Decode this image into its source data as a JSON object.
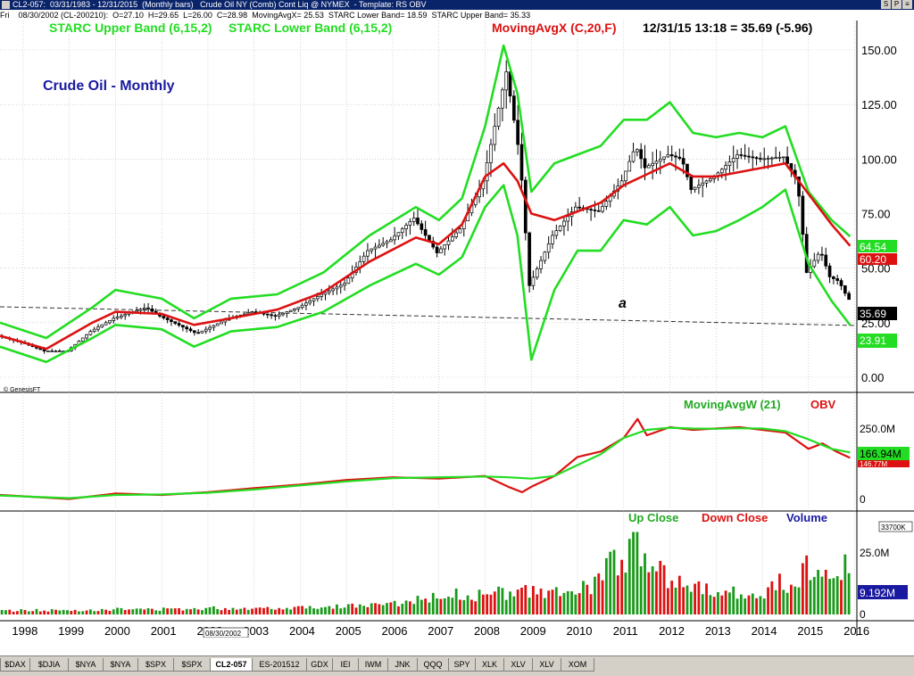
{
  "window": {
    "title": "CL2-057:  03/31/1983 - 12/31/2015  (Monthly bars)   Crude Oil NY (Comb) Cont Liq @ NYMEX  - Template: RS OBV",
    "buttons": [
      "S",
      "P",
      "≡"
    ]
  },
  "infobar": "Fri    08/30/2002 (CL-200210):  O=27.10  H=29.65  L=26.00  C=28.98  MovingAvgX= 25.53  STARC Lower Band= 18.59  STARC Upper Band= 35.33",
  "colors": {
    "green": "#22dd22",
    "red": "#dd1111",
    "navy": "#1a1aa0",
    "bg": "#ffffff",
    "greenBox": "#22dd22",
    "redBox": "#dd1111"
  },
  "main_panel": {
    "legend_upper": "STARC Upper Band (6,15,2)",
    "legend_lower": "STARC Lower Band (6,15,2)",
    "legend_ma": "MovingAvgX (C,20,F)",
    "legend_value": "12/31/15 13:18 = 35.69 (-5.96)",
    "title": "Crude Oil - Monthly",
    "annotation": "a",
    "copyright": "© GenesisFT",
    "value_boxes": {
      "upper": "64.54",
      "ma": "60.20",
      "last": "35.69",
      "lower": "23.91"
    }
  },
  "obv_panel": {
    "legend_ma": "MovingAvgW (21)",
    "legend_obv": "OBV",
    "value_boxes": {
      "ma": "166.94M",
      "obv": "146.77M"
    }
  },
  "volume_panel": {
    "legend_up": "Up Close",
    "legend_down": "Down Close",
    "legend_vol": "Volume",
    "value_box": "9.192M",
    "top_label": "33700K"
  },
  "cursor_date": "08/30/2002",
  "tabs": [
    "$DAX",
    "$DJIA",
    "$NYA",
    "$NYA",
    "$SPX",
    "$SPX",
    "CL2-057",
    "ES-201512",
    "GDX",
    "IEI",
    "IWM",
    "JNK",
    "QQQ",
    "SPY",
    "XLK",
    "XLV",
    "XLV",
    "XOM"
  ],
  "active_tab": "CL2-057",
  "chart_data": [
    {
      "type": "line",
      "title": "Crude Oil - Monthly",
      "x_ticks": [
        "1998",
        "1999",
        "2000",
        "2001",
        "2002",
        "2003",
        "2004",
        "2005",
        "2006",
        "2007",
        "2008",
        "2009",
        "2010",
        "2011",
        "2012",
        "2013",
        "2014",
        "2015",
        "2016"
      ],
      "y_ticks": [
        0,
        25,
        50,
        75,
        100,
        125,
        150
      ],
      "ylim": [
        -2,
        157
      ],
      "grid": true,
      "series": [
        {
          "name": "STARC Upper Band (6,15,2)",
          "x": [
            1997.5,
            1998.5,
            1999.5,
            2000.0,
            2001.0,
            2001.7,
            2002.5,
            2003.5,
            2004.5,
            2005.5,
            2006.5,
            2007.0,
            2007.5,
            2008.0,
            2008.4,
            2008.7,
            2009.0,
            2009.5,
            2010.0,
            2010.5,
            2011.0,
            2011.5,
            2012.0,
            2012.5,
            2013.0,
            2013.5,
            2014.0,
            2014.5,
            2015.0,
            2015.5,
            2015.9
          ],
          "y": [
            25,
            18,
            32,
            40,
            36,
            27,
            36,
            38,
            48,
            65,
            78,
            72,
            82,
            115,
            152,
            130,
            85,
            98,
            102,
            106,
            118,
            118,
            126,
            112,
            110,
            112,
            110,
            115,
            85,
            72,
            64.54
          ]
        },
        {
          "name": "STARC Lower Band (6,15,2)",
          "x": [
            1997.5,
            1998.5,
            1999.5,
            2000.0,
            2001.0,
            2001.7,
            2002.5,
            2003.5,
            2004.5,
            2005.5,
            2006.5,
            2007.0,
            2007.5,
            2008.0,
            2008.4,
            2008.7,
            2009.0,
            2009.5,
            2010.0,
            2010.5,
            2011.0,
            2011.5,
            2012.0,
            2012.5,
            2013.0,
            2013.5,
            2014.0,
            2014.5,
            2015.0,
            2015.5,
            2015.9
          ],
          "y": [
            14,
            7,
            18,
            24,
            22,
            14,
            21,
            23,
            30,
            42,
            52,
            47,
            55,
            78,
            88,
            65,
            8,
            40,
            58,
            58,
            72,
            70,
            78,
            65,
            67,
            72,
            78,
            86,
            52,
            35,
            23.91
          ]
        },
        {
          "name": "MovingAvgX (C,20,F)",
          "x": [
            1997.5,
            1998.5,
            1999.5,
            2000.0,
            2001.0,
            2001.7,
            2002.5,
            2003.5,
            2004.5,
            2005.5,
            2006.5,
            2007.0,
            2007.5,
            2008.0,
            2008.4,
            2008.7,
            2009.0,
            2009.5,
            2010.0,
            2010.5,
            2011.0,
            2011.5,
            2012.0,
            2012.5,
            2013.0,
            2013.5,
            2014.0,
            2014.5,
            2015.0,
            2015.5,
            2015.9
          ],
          "y": [
            19,
            13,
            25,
            30,
            29,
            24,
            27,
            31,
            39,
            53,
            64,
            61,
            70,
            92,
            98,
            90,
            75,
            72,
            76,
            80,
            88,
            93,
            98,
            92,
            92,
            94,
            96,
            98,
            84,
            70,
            60.2
          ]
        },
        {
          "name": "Price",
          "x": [
            1997.5,
            1998.0,
            1998.5,
            1999.0,
            1999.5,
            2000.0,
            2000.7,
            2001.0,
            2001.8,
            2002.5,
            2003.0,
            2003.5,
            2004.0,
            2004.5,
            2005.0,
            2005.5,
            2006.0,
            2006.5,
            2007.0,
            2007.5,
            2008.0,
            2008.5,
            2008.8,
            2009.0,
            2009.5,
            2010.0,
            2010.5,
            2011.0,
            2011.3,
            2011.5,
            2012.0,
            2012.3,
            2012.5,
            2013.0,
            2013.5,
            2014.0,
            2014.5,
            2014.8,
            2015.0,
            2015.3,
            2015.5,
            2015.7,
            2015.9
          ],
          "y": [
            19,
            16,
            12,
            12,
            21,
            27,
            32,
            28,
            20,
            27,
            30,
            28,
            32,
            38,
            43,
            58,
            63,
            73,
            57,
            68,
            90,
            140,
            100,
            42,
            65,
            78,
            76,
            90,
            106,
            96,
            102,
            100,
            86,
            92,
            102,
            100,
            101,
            90,
            48,
            58,
            46,
            44,
            35.69
          ]
        }
      ]
    },
    {
      "type": "line",
      "y_ticks": [
        "0",
        "250.0M"
      ],
      "series": [
        {
          "name": "OBV",
          "x": [
            1997.5,
            1999.0,
            2000.0,
            2001.0,
            2002.0,
            2003.0,
            2004.0,
            2005.0,
            2006.0,
            2007.0,
            2008.0,
            2008.5,
            2008.8,
            2009.0,
            2009.5,
            2010.0,
            2010.5,
            2011.0,
            2011.3,
            2011.5,
            2012.0,
            2012.5,
            2013.0,
            2013.5,
            2014.0,
            2014.5,
            2015.0,
            2015.3,
            2015.6,
            2015.9
          ],
          "y": [
            10,
            -5,
            15,
            10,
            20,
            35,
            48,
            65,
            75,
            70,
            80,
            40,
            20,
            40,
            80,
            150,
            170,
            220,
            290,
            230,
            260,
            250,
            255,
            260,
            250,
            240,
            180,
            200,
            170,
            146.77
          ]
        },
        {
          "name": "MovingAvgW (21)",
          "x": [
            1997.5,
            1999.0,
            2000.0,
            2001.0,
            2002.0,
            2003.0,
            2004.0,
            2005.0,
            2006.0,
            2007.0,
            2008.0,
            2008.5,
            2009.0,
            2009.5,
            2010.0,
            2010.5,
            2011.0,
            2011.5,
            2012.0,
            2012.5,
            2013.0,
            2013.5,
            2014.0,
            2014.5,
            2015.0,
            2015.5,
            2015.9
          ],
          "y": [
            8,
            -2,
            10,
            12,
            18,
            30,
            45,
            60,
            72,
            75,
            78,
            75,
            70,
            80,
            120,
            160,
            220,
            250,
            258,
            255,
            254,
            256,
            255,
            245,
            215,
            180,
            166.94
          ]
        }
      ]
    },
    {
      "type": "bar",
      "y_ticks": [
        "0",
        "25.0M"
      ],
      "series": [
        {
          "name": "Up Close",
          "x": [
            1998,
            1999,
            2000,
            2001,
            2002,
            2003,
            2004,
            2005,
            2006,
            2007,
            2008,
            2009,
            2010,
            2011,
            2011.3,
            2012,
            2013,
            2014,
            2015,
            2015.3
          ],
          "y": [
            2,
            2,
            2.5,
            2.5,
            3,
            3,
            3.5,
            4,
            5,
            9,
            10,
            10,
            10,
            28,
            33,
            17,
            11,
            10,
            12,
            22
          ]
        },
        {
          "name": "Down Close",
          "x": [
            1998,
            1999,
            2000,
            2001,
            2002,
            2003,
            2004,
            2005,
            2006,
            2007,
            2008,
            2009,
            2010,
            2011,
            2011.3,
            2012,
            2013,
            2014,
            2015,
            2015.3
          ],
          "y": [
            1.8,
            1.9,
            2.3,
            2.4,
            2.8,
            3,
            3.3,
            4,
            4.5,
            8,
            9,
            11,
            9,
            25,
            30,
            16,
            10,
            9,
            26,
            18
          ]
        }
      ]
    }
  ]
}
